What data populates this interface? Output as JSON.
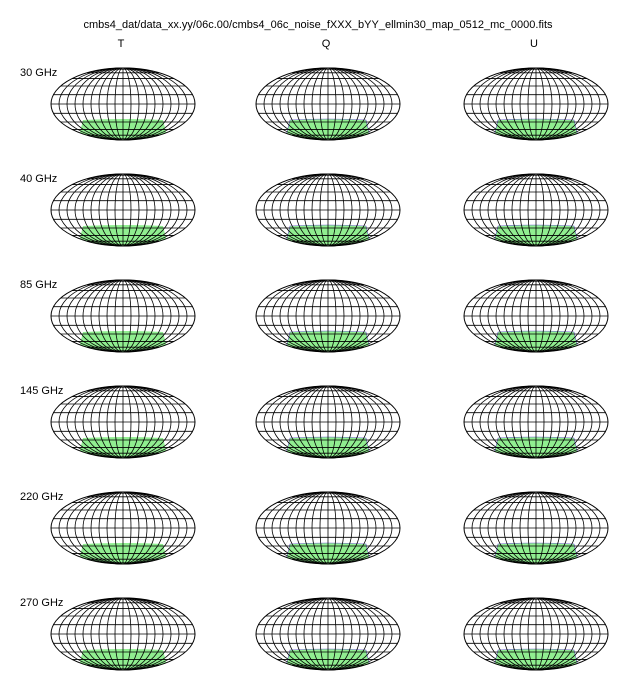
{
  "header": {
    "title": "cmbs4_dat/data_xx.yy/06c.00/cmbs4_06c_noise_fXXX_bYY_ellmin30_map_0512_mc_0000.fits"
  },
  "columns": [
    "T",
    "Q",
    "U"
  ],
  "rows": [
    "30 GHz",
    "40 GHz",
    "85 GHz",
    "145 GHz",
    "220 GHz",
    "270 GHz"
  ]
}
